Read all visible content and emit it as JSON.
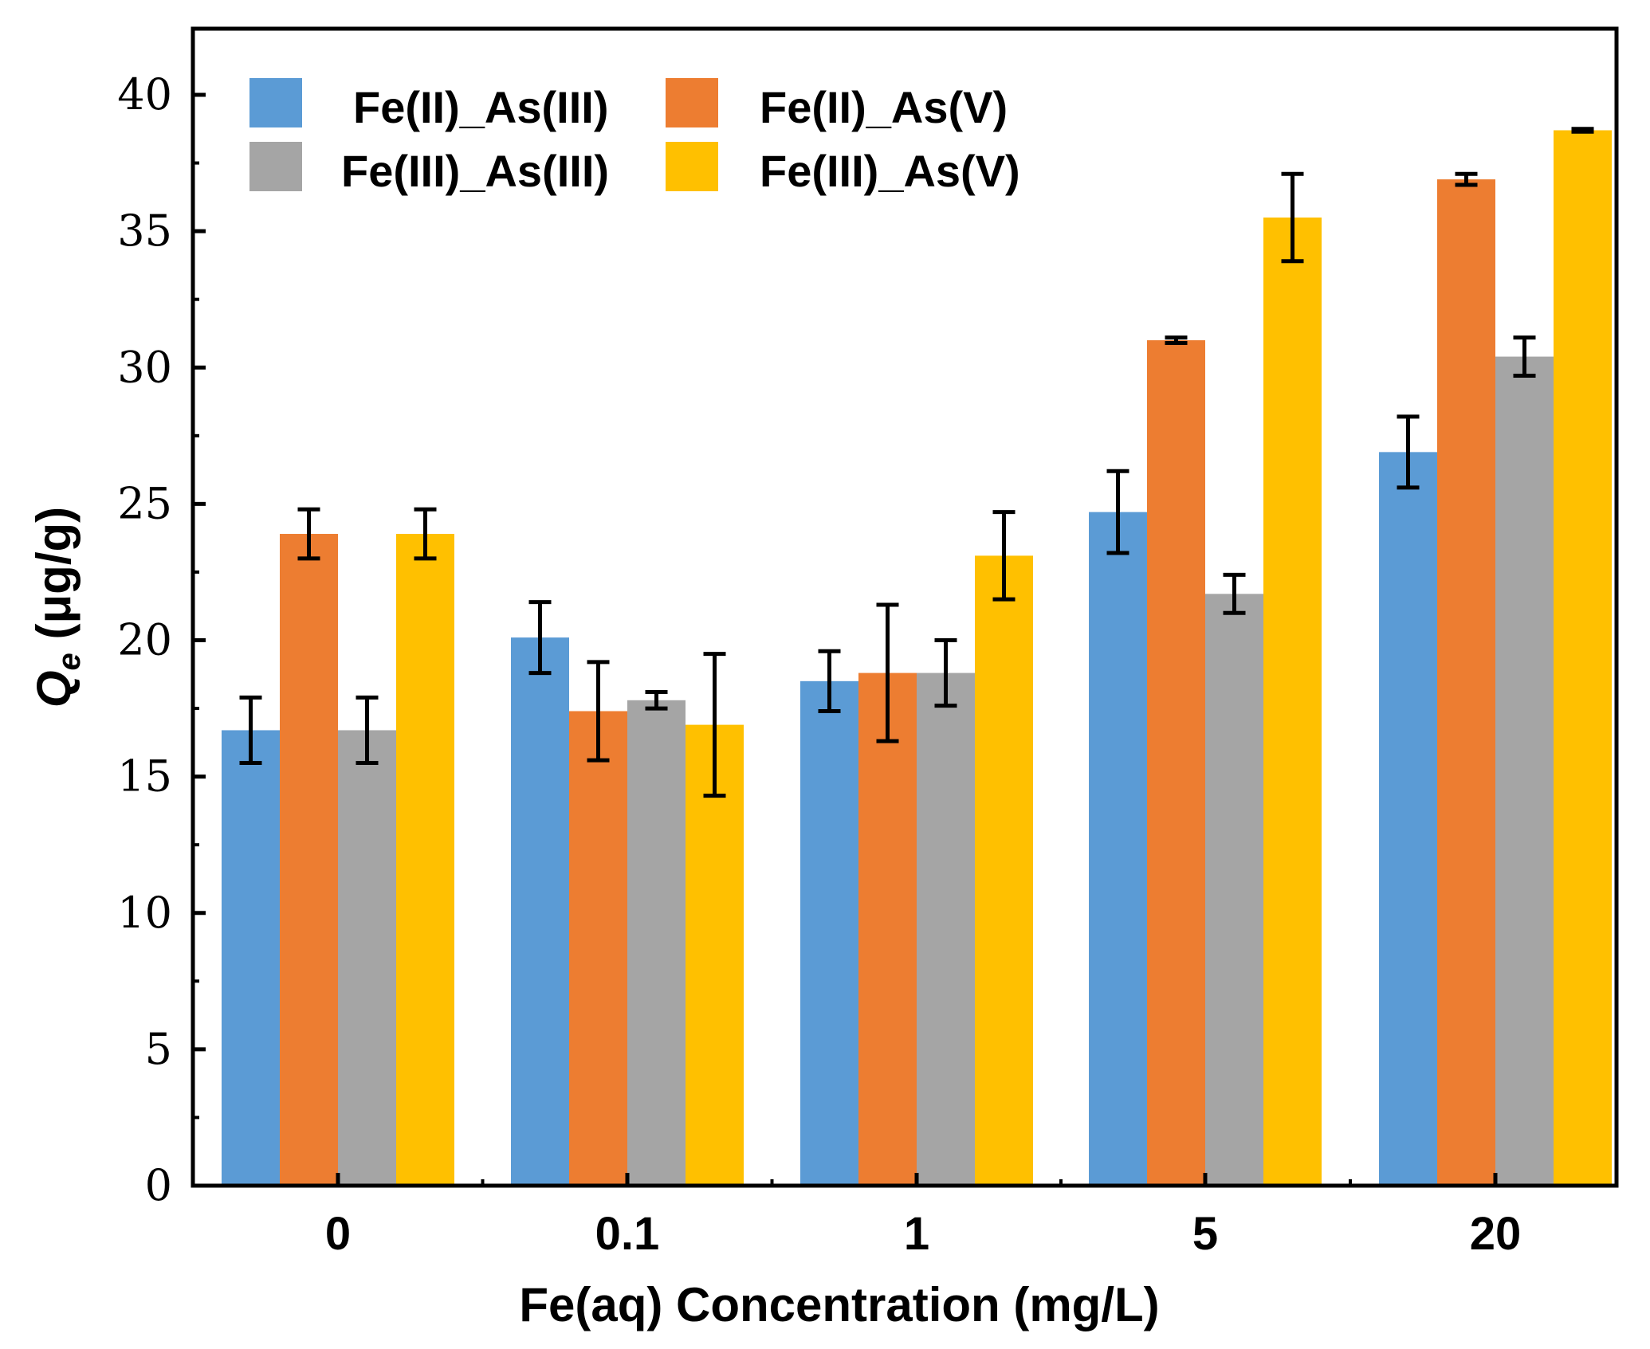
{
  "chart_data": {
    "type": "bar",
    "title": "",
    "xlabel": "Fe(aq) Concentration (mg/L)",
    "ylabel_main": "Q",
    "ylabel_sub": "e",
    "ylabel_rest": " (μg/g)",
    "ylim": [
      0,
      42
    ],
    "yticks": [
      0,
      5,
      10,
      15,
      20,
      25,
      30,
      35,
      40
    ],
    "ytick_labels": [
      "0",
      "5",
      "10",
      "15",
      "20",
      "25",
      "30",
      "35",
      "40"
    ],
    "categories": [
      "0",
      "0.1",
      "1",
      "5",
      "20"
    ],
    "legend_position": "top-left",
    "grid": false,
    "series": [
      {
        "name": "Fe(II)_As(III)",
        "color": "#5b9bd5",
        "values": [
          16.7,
          20.1,
          18.5,
          24.7,
          26.9
        ],
        "errors": [
          1.2,
          1.3,
          1.1,
          1.5,
          1.3
        ]
      },
      {
        "name": "Fe(II)_As(V)",
        "color": "#ed7d31",
        "values": [
          23.9,
          17.4,
          18.8,
          31.0,
          36.9
        ],
        "errors": [
          0.9,
          1.8,
          2.5,
          0.1,
          0.2
        ]
      },
      {
        "name": "Fe(III)_As(III)",
        "color": "#a5a5a5",
        "values": [
          16.7,
          17.8,
          18.8,
          21.7,
          30.4
        ],
        "errors": [
          1.2,
          0.3,
          1.2,
          0.7,
          0.7
        ]
      },
      {
        "name": "Fe(III)_As(V)",
        "color": "#ffc000",
        "values": [
          23.9,
          16.9,
          23.1,
          35.5,
          38.7
        ],
        "errors": [
          0.9,
          2.6,
          1.6,
          1.6,
          0.05
        ]
      }
    ]
  }
}
